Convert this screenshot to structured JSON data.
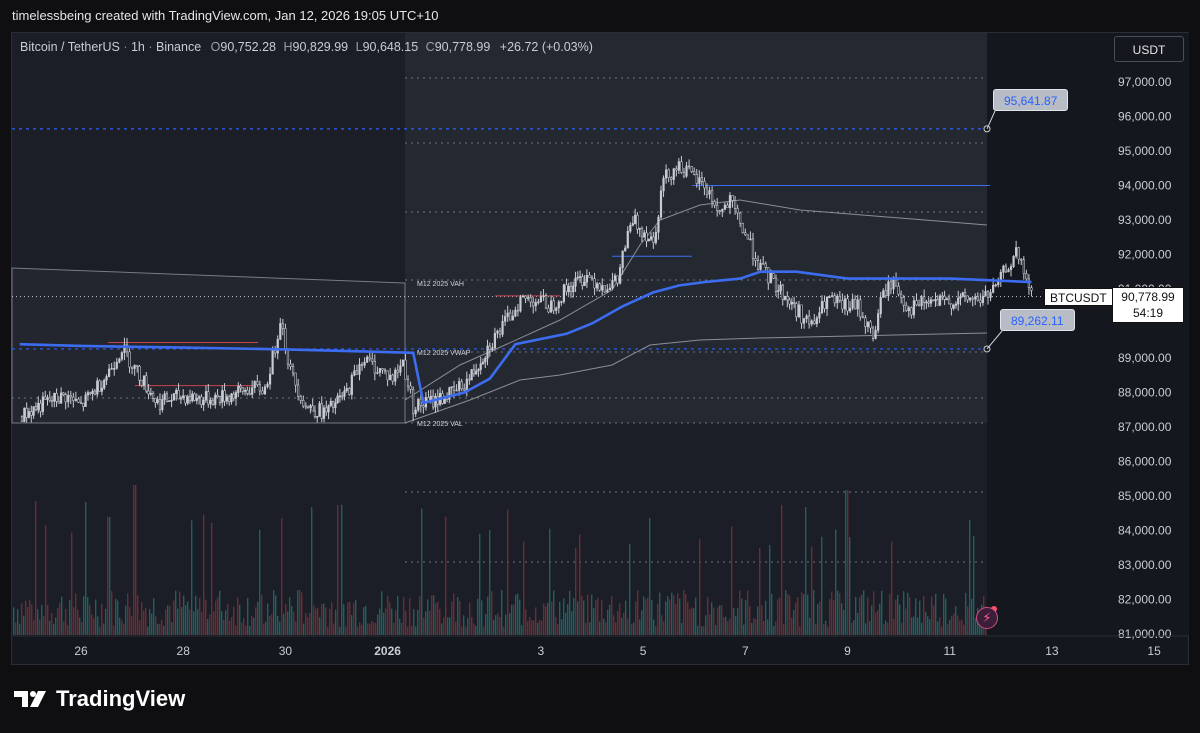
{
  "header": {
    "attribution": "timelessbeing created with TradingView.com, Jan 12, 2026 19:05 UTC+10"
  },
  "legend": {
    "symbol": "Bitcoin / TetherUS",
    "interval": "1h",
    "exchange": "Binance",
    "open_label": "O",
    "open": "90,752.28",
    "high_label": "H",
    "high": "90,829.99",
    "low_label": "L",
    "low": "90,648.15",
    "close_label": "C",
    "close": "90,778.99",
    "change": "+26.72 (+0.03%)"
  },
  "currency": "USDT",
  "price_tags": {
    "upper": "95,641.87",
    "lower": "89,262.11"
  },
  "symbol_label": "BTCUSDT",
  "last_price": "90,778.99",
  "countdown": "54:19",
  "brand": "TradingView",
  "colors": {
    "background": "#15171e",
    "accent": "#2962ff",
    "vwap": "#3c6df0",
    "bull": "#26a69a",
    "bear": "#ef5350",
    "candle": "#c8cbd2"
  },
  "chart_data": {
    "type": "candlestick",
    "title": "",
    "x_ticks": [
      "26",
      "28",
      "30",
      "2026",
      "3",
      "5",
      "7",
      "9",
      "11",
      "13",
      "15"
    ],
    "y_ticks": [
      "97,000.00",
      "96,000.00",
      "95,000.00",
      "94,000.00",
      "93,000.00",
      "92,000.00",
      "91,000.00",
      "89,000.00",
      "88,000.00",
      "87,000.00",
      "86,000.00",
      "85,000.00",
      "84,000.00",
      "83,000.00",
      "82,000.00",
      "81,000.00"
    ],
    "ylim": [
      81000,
      97500
    ],
    "horizontal_levels": [
      95641.87,
      89262.11
    ],
    "anchored_profile_labels": [
      "M12 2025 VAH",
      "M12 2025 VWAP",
      "M12 2025 VAL"
    ],
    "price_path": [
      [
        24.8,
        87300
      ],
      [
        25.3,
        87700
      ],
      [
        25.7,
        87900
      ],
      [
        26.0,
        87600
      ],
      [
        26.5,
        88500
      ],
      [
        26.8,
        89300
      ],
      [
        27.1,
        88600
      ],
      [
        27.5,
        87700
      ],
      [
        28.0,
        87900
      ],
      [
        28.4,
        87800
      ],
      [
        28.9,
        87900
      ],
      [
        29.3,
        88100
      ],
      [
        29.6,
        88100
      ],
      [
        29.8,
        89300
      ],
      [
        29.9,
        90200
      ],
      [
        30.1,
        88600
      ],
      [
        30.4,
        87600
      ],
      [
        30.8,
        87400
      ],
      [
        31.2,
        88000
      ],
      [
        31.5,
        89000
      ],
      [
        31.8,
        88700
      ],
      [
        32.1,
        88400
      ],
      [
        32.3,
        88900
      ],
      [
        32.5,
        87600
      ],
      [
        32.8,
        87700
      ],
      [
        33.3,
        88000
      ],
      [
        33.6,
        88400
      ],
      [
        34.0,
        89400
      ],
      [
        34.3,
        90000
      ],
      [
        34.6,
        90700
      ],
      [
        34.9,
        90700
      ],
      [
        35.2,
        90500
      ],
      [
        35.5,
        91000
      ],
      [
        35.9,
        91400
      ],
      [
        36.2,
        91100
      ],
      [
        36.5,
        91200
      ],
      [
        36.6,
        92000
      ],
      [
        36.8,
        93000
      ],
      [
        37.2,
        92400
      ],
      [
        37.4,
        94200
      ],
      [
        37.7,
        94600
      ],
      [
        38.0,
        94200
      ],
      [
        38.2,
        94000
      ],
      [
        38.5,
        93200
      ],
      [
        38.7,
        93500
      ],
      [
        39.0,
        92600
      ],
      [
        39.3,
        91600
      ],
      [
        39.6,
        91100
      ],
      [
        40.0,
        90400
      ],
      [
        40.3,
        89900
      ],
      [
        40.6,
        90700
      ],
      [
        40.9,
        90500
      ],
      [
        41.2,
        90500
      ],
      [
        41.5,
        89600
      ],
      [
        41.7,
        90900
      ],
      [
        41.9,
        91200
      ],
      [
        42.2,
        90400
      ],
      [
        42.5,
        90600
      ],
      [
        42.9,
        90600
      ],
      [
        43.3,
        90700
      ],
      [
        43.6,
        90700
      ],
      [
        43.9,
        91000
      ],
      [
        44.1,
        91600
      ],
      [
        44.3,
        92000
      ],
      [
        44.5,
        91300
      ],
      [
        44.6,
        90779
      ]
    ],
    "vwap_path": [
      [
        24.8,
        89400
      ],
      [
        26.0,
        89350
      ],
      [
        28.0,
        89300
      ],
      [
        30.0,
        89250
      ],
      [
        32.5,
        89150
      ],
      [
        32.7,
        87700
      ],
      [
        33.5,
        88000
      ],
      [
        34.0,
        88400
      ],
      [
        34.5,
        89400
      ],
      [
        35.5,
        89700
      ],
      [
        36.0,
        90000
      ],
      [
        36.6,
        90500
      ],
      [
        37.2,
        90900
      ],
      [
        37.7,
        91100
      ],
      [
        38.2,
        91200
      ],
      [
        38.9,
        91300
      ],
      [
        39.3,
        91500
      ],
      [
        40.0,
        91500
      ],
      [
        41.0,
        91300
      ],
      [
        43.0,
        91300
      ],
      [
        44.6,
        91200
      ]
    ],
    "volume_scale_note": "relative volume histogram at chart bottom"
  }
}
